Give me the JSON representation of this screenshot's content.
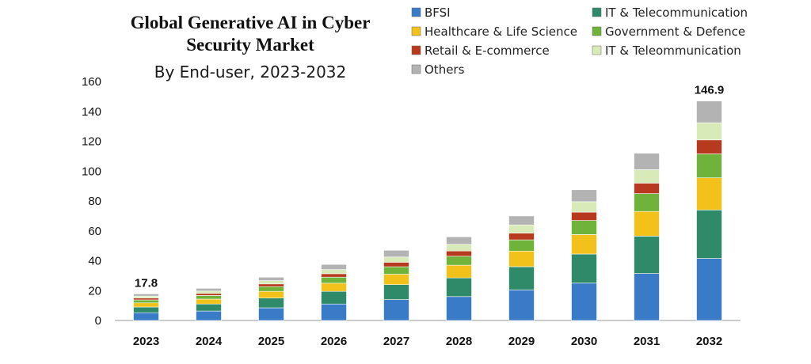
{
  "chart_data": {
    "type": "bar",
    "stacked": true,
    "title_lines": [
      "Global Generative AI in Cyber",
      "Security Market"
    ],
    "subtitle": "By End-user, 2023-2032",
    "xlabel": "",
    "ylabel": "",
    "categories": [
      "2023",
      "2024",
      "2025",
      "2026",
      "2027",
      "2028",
      "2029",
      "2030",
      "2031",
      "2032"
    ],
    "ylim": [
      0,
      160
    ],
    "yticks": [
      0,
      20,
      40,
      60,
      80,
      100,
      120,
      140,
      160
    ],
    "grid": false,
    "legend_position": "top-right",
    "series": [
      {
        "name": "BFSI",
        "color": "#3a7bc8",
        "values": [
          5.2,
          6.3,
          8.5,
          11,
          14,
          16,
          20.5,
          25,
          31.5,
          41.5
        ]
      },
      {
        "name": "IT & Telecommunication",
        "color": "#2f8a6a",
        "values": [
          3.8,
          4.7,
          6.5,
          8.5,
          10,
          12.5,
          15.5,
          19.5,
          25,
          32.5
        ]
      },
      {
        "name": "Healthcare & Life Science",
        "color": "#f2c21a",
        "values": [
          2.8,
          3.3,
          4.5,
          5.5,
          7,
          8.5,
          10.5,
          13,
          16.5,
          21.5
        ]
      },
      {
        "name": "Government & Defence",
        "color": "#6fb33b",
        "values": [
          2,
          2.4,
          3.2,
          4,
          5,
          6,
          7.5,
          9.5,
          12,
          16
        ]
      },
      {
        "name": "Retail & E-commerce",
        "color": "#b83a1e",
        "values": [
          1.2,
          1.4,
          1.8,
          2.3,
          3,
          3.5,
          4.5,
          5.5,
          7,
          9.4
        ]
      },
      {
        "name": "IT & Teleommunication",
        "color": "#d8eab8",
        "values": [
          1.3,
          1.6,
          2.2,
          2.8,
          3.5,
          4.5,
          5.5,
          7,
          9,
          11.5
        ]
      },
      {
        "name": "Others",
        "color": "#b3b3b3",
        "values": [
          1.5,
          1.8,
          2.3,
          3.4,
          4.5,
          5,
          6,
          8,
          11,
          14.5
        ]
      }
    ],
    "annotations": [
      {
        "category": "2023",
        "label": "17.8"
      },
      {
        "category": "2032",
        "label": "146.9"
      }
    ]
  }
}
